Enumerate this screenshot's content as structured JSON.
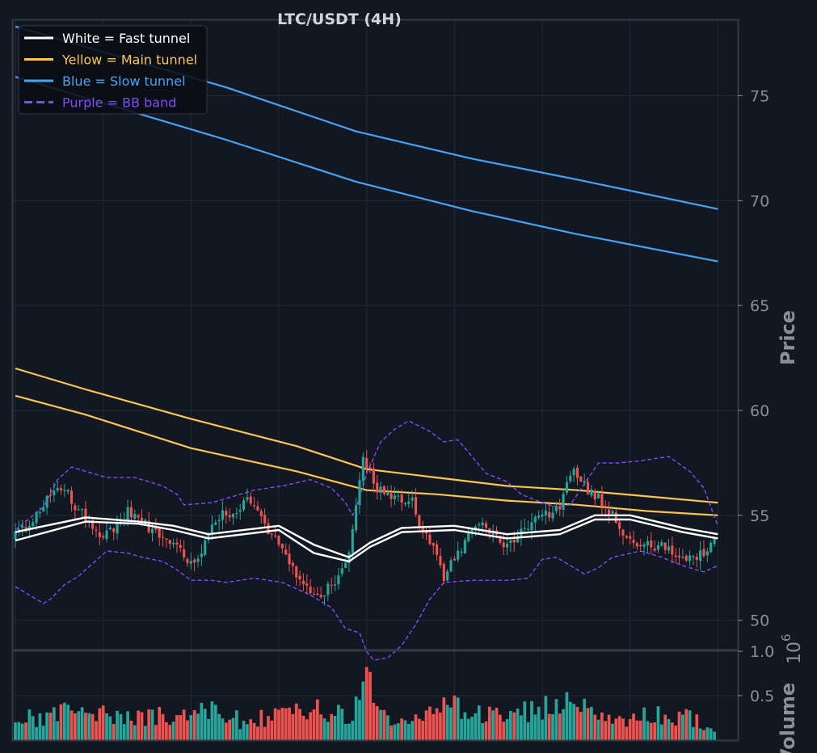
{
  "chart_data": {
    "type": "candlestick",
    "title": "LTC/USDT (4H)",
    "ylabel": "Price",
    "volume_label": "Volume",
    "volume_exponent_base": "10",
    "volume_exponent_power": "6",
    "ylim": [
      48.6,
      78.6
    ],
    "yticks": [
      50,
      55,
      60,
      65,
      70,
      75
    ],
    "volume_ylim": [
      0,
      1.0
    ],
    "volume_yticks": [
      0.5,
      1.0
    ],
    "grid": true,
    "legend_position": "top-left",
    "colors": {
      "background": "#131722",
      "grid": "#252a36",
      "border": "#363a45",
      "up": "#26a69a",
      "down": "#ef5350",
      "fast": "#ffffff",
      "main": "#f9c74f",
      "slow": "#42a5f5",
      "bb": "#7c4dff"
    },
    "legend": [
      {
        "label": "White = Fast tunnel",
        "color": "#ffffff",
        "dash": false
      },
      {
        "label": "Yellow = Main tunnel",
        "color": "#f9c74f",
        "dash": false
      },
      {
        "label": "Blue = Slow tunnel",
        "color": "#42a5f5",
        "dash": false
      },
      {
        "label": "Purple = BB band",
        "color": "#7c4dff",
        "dash": true
      }
    ],
    "price_anchors": [
      [
        0,
        53.8
      ],
      [
        4,
        54.4
      ],
      [
        8,
        55.2
      ],
      [
        12,
        56.3
      ],
      [
        15,
        56.4
      ],
      [
        19,
        55.2
      ],
      [
        23,
        54.6
      ],
      [
        26,
        54.0
      ],
      [
        30,
        54.6
      ],
      [
        33,
        55.2
      ],
      [
        37,
        54.7
      ],
      [
        41,
        54.2
      ],
      [
        45,
        53.9
      ],
      [
        48,
        53.3
      ],
      [
        52,
        52.7
      ],
      [
        55,
        53.7
      ],
      [
        59,
        54.9
      ],
      [
        63,
        55.2
      ],
      [
        67,
        55.6
      ],
      [
        70,
        55.0
      ],
      [
        74,
        54.1
      ],
      [
        78,
        53.0
      ],
      [
        82,
        51.8
      ],
      [
        85,
        51.2
      ],
      [
        89,
        51.3
      ],
      [
        93,
        52.1
      ],
      [
        96,
        53.3
      ],
      [
        98,
        55.5
      ],
      [
        100,
        57.9
      ],
      [
        102,
        57.0
      ],
      [
        104,
        56.3
      ],
      [
        107,
        56.0
      ],
      [
        110,
        55.8
      ],
      [
        114,
        55.6
      ],
      [
        117,
        54.3
      ],
      [
        120,
        53.4
      ],
      [
        123,
        52.1
      ],
      [
        126,
        52.9
      ],
      [
        130,
        53.9
      ],
      [
        133,
        54.8
      ],
      [
        137,
        54.2
      ],
      [
        140,
        53.7
      ],
      [
        144,
        54.0
      ],
      [
        148,
        54.6
      ],
      [
        152,
        55.0
      ],
      [
        156,
        55.4
      ],
      [
        158,
        56.6
      ],
      [
        160,
        57.3
      ],
      [
        162,
        56.6
      ],
      [
        165,
        56.1
      ],
      [
        168,
        55.6
      ],
      [
        171,
        55.0
      ],
      [
        174,
        53.8
      ],
      [
        178,
        53.7
      ],
      [
        182,
        53.6
      ],
      [
        186,
        53.4
      ],
      [
        190,
        52.9
      ],
      [
        194,
        52.8
      ],
      [
        198,
        53.4
      ],
      [
        200,
        53.9
      ]
    ],
    "volume_anchors": [
      [
        0,
        0.22
      ],
      [
        8,
        0.28
      ],
      [
        16,
        0.32
      ],
      [
        24,
        0.28
      ],
      [
        32,
        0.26
      ],
      [
        40,
        0.3
      ],
      [
        48,
        0.24
      ],
      [
        56,
        0.34
      ],
      [
        64,
        0.22
      ],
      [
        72,
        0.26
      ],
      [
        80,
        0.32
      ],
      [
        88,
        0.34
      ],
      [
        96,
        0.3
      ],
      [
        99,
        0.98
      ],
      [
        102,
        0.4
      ],
      [
        110,
        0.22
      ],
      [
        118,
        0.32
      ],
      [
        126,
        0.38
      ],
      [
        134,
        0.26
      ],
      [
        142,
        0.3
      ],
      [
        150,
        0.36
      ],
      [
        158,
        0.4
      ],
      [
        166,
        0.3
      ],
      [
        174,
        0.22
      ],
      [
        182,
        0.28
      ],
      [
        190,
        0.3
      ],
      [
        198,
        0.12
      ],
      [
        200,
        0.04
      ]
    ],
    "bars": 200,
    "fast_tunnel": {
      "upper": [
        [
          0,
          54.2
        ],
        [
          20,
          54.9
        ],
        [
          35,
          54.7
        ],
        [
          45,
          54.5
        ],
        [
          55,
          54.1
        ],
        [
          75,
          54.5
        ],
        [
          85,
          53.6
        ],
        [
          95,
          53.0
        ],
        [
          101,
          53.7
        ],
        [
          110,
          54.4
        ],
        [
          125,
          54.5
        ],
        [
          140,
          54.1
        ],
        [
          155,
          54.3
        ],
        [
          165,
          55.0
        ],
        [
          175,
          55.0
        ],
        [
          190,
          54.4
        ],
        [
          200,
          54.1
        ]
      ],
      "lower": [
        [
          0,
          53.8
        ],
        [
          20,
          54.7
        ],
        [
          35,
          54.6
        ],
        [
          45,
          54.3
        ],
        [
          55,
          53.9
        ],
        [
          75,
          54.3
        ],
        [
          85,
          53.2
        ],
        [
          95,
          52.8
        ],
        [
          101,
          53.5
        ],
        [
          110,
          54.2
        ],
        [
          125,
          54.3
        ],
        [
          140,
          53.9
        ],
        [
          155,
          54.1
        ],
        [
          165,
          54.8
        ],
        [
          175,
          54.8
        ],
        [
          190,
          54.2
        ],
        [
          200,
          53.9
        ]
      ]
    },
    "main_tunnel": {
      "upper": [
        [
          0,
          62.0
        ],
        [
          20,
          61.0
        ],
        [
          50,
          59.6
        ],
        [
          80,
          58.3
        ],
        [
          100,
          57.2
        ],
        [
          120,
          56.8
        ],
        [
          140,
          56.4
        ],
        [
          160,
          56.2
        ],
        [
          180,
          55.9
        ],
        [
          200,
          55.6
        ]
      ],
      "lower": [
        [
          0,
          60.7
        ],
        [
          20,
          59.8
        ],
        [
          50,
          58.2
        ],
        [
          80,
          57.1
        ],
        [
          100,
          56.2
        ],
        [
          120,
          56.0
        ],
        [
          140,
          55.7
        ],
        [
          160,
          55.5
        ],
        [
          180,
          55.2
        ],
        [
          200,
          55.0
        ]
      ]
    },
    "slow_tunnel": {
      "upper": [
        [
          0,
          78.3
        ],
        [
          60,
          75.4
        ],
        [
          97,
          73.3
        ],
        [
          130,
          72.0
        ],
        [
          160,
          71.0
        ],
        [
          200,
          69.6
        ]
      ],
      "lower": [
        [
          0,
          75.9
        ],
        [
          60,
          72.9
        ],
        [
          97,
          70.9
        ],
        [
          130,
          69.5
        ],
        [
          160,
          68.4
        ],
        [
          200,
          67.1
        ]
      ]
    },
    "bb_band": {
      "upper": [
        [
          0,
          54.3
        ],
        [
          8,
          55.4
        ],
        [
          12,
          56.7
        ],
        [
          16,
          57.3
        ],
        [
          22,
          57.0
        ],
        [
          26,
          56.8
        ],
        [
          34,
          56.8
        ],
        [
          42,
          56.4
        ],
        [
          46,
          56.0
        ],
        [
          48,
          55.5
        ],
        [
          56,
          55.6
        ],
        [
          60,
          55.8
        ],
        [
          68,
          56.2
        ],
        [
          76,
          56.4
        ],
        [
          84,
          56.7
        ],
        [
          90,
          56.3
        ],
        [
          94,
          55.6
        ],
        [
          96,
          55.0
        ],
        [
          98,
          55.8
        ],
        [
          100,
          57.0
        ],
        [
          104,
          58.5
        ],
        [
          108,
          59.1
        ],
        [
          112,
          59.5
        ],
        [
          118,
          59.0
        ],
        [
          122,
          58.5
        ],
        [
          126,
          58.6
        ],
        [
          130,
          57.8
        ],
        [
          134,
          57.0
        ],
        [
          140,
          56.6
        ],
        [
          144,
          56.0
        ],
        [
          150,
          55.6
        ],
        [
          154,
          55.4
        ],
        [
          158,
          55.5
        ],
        [
          162,
          56.5
        ],
        [
          166,
          57.5
        ],
        [
          172,
          57.5
        ],
        [
          178,
          57.6
        ],
        [
          186,
          57.8
        ],
        [
          192,
          57.1
        ],
        [
          196,
          56.3
        ],
        [
          198,
          55.4
        ],
        [
          200,
          54.5
        ]
      ],
      "lower": [
        [
          0,
          51.6
        ],
        [
          4,
          51.2
        ],
        [
          8,
          50.8
        ],
        [
          10,
          51.0
        ],
        [
          14,
          51.7
        ],
        [
          18,
          52.1
        ],
        [
          22,
          52.7
        ],
        [
          26,
          53.3
        ],
        [
          32,
          53.2
        ],
        [
          36,
          53.0
        ],
        [
          42,
          52.8
        ],
        [
          46,
          52.4
        ],
        [
          50,
          51.9
        ],
        [
          56,
          51.9
        ],
        [
          60,
          51.8
        ],
        [
          68,
          52.0
        ],
        [
          76,
          51.8
        ],
        [
          84,
          51.2
        ],
        [
          90,
          50.6
        ],
        [
          94,
          49.6
        ],
        [
          98,
          49.4
        ],
        [
          100,
          48.5
        ],
        [
          102,
          48.1
        ],
        [
          106,
          48.2
        ],
        [
          110,
          48.8
        ],
        [
          114,
          49.8
        ],
        [
          118,
          51.0
        ],
        [
          122,
          51.8
        ],
        [
          130,
          51.9
        ],
        [
          140,
          51.9
        ],
        [
          146,
          52.0
        ],
        [
          150,
          52.9
        ],
        [
          154,
          53.0
        ],
        [
          158,
          52.6
        ],
        [
          162,
          52.2
        ],
        [
          166,
          52.5
        ],
        [
          170,
          53.0
        ],
        [
          178,
          53.3
        ],
        [
          184,
          53.0
        ],
        [
          190,
          52.6
        ],
        [
          196,
          52.3
        ],
        [
          200,
          52.6
        ]
      ]
    }
  }
}
